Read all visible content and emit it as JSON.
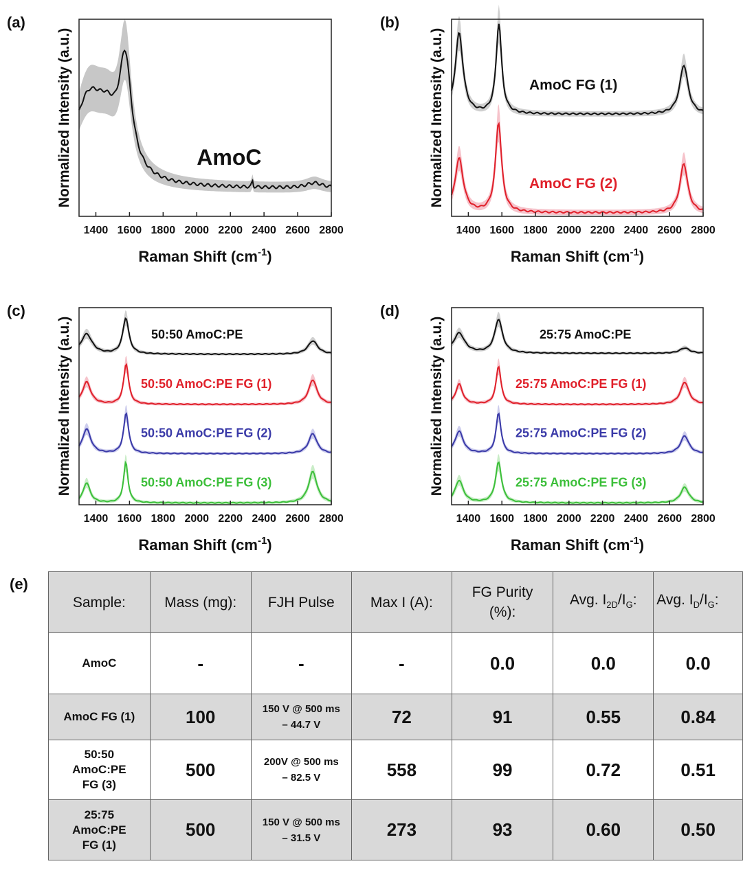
{
  "panel_e_label": "(e)",
  "chart_data": [
    {
      "panel": "(a)",
      "type": "line",
      "xlabel": "Raman Shift (cm",
      "xlabel_sup": "-1",
      "xlabel_end": ")",
      "ylabel": "Normalized Intensity (a.u.)",
      "xlim": [
        1300,
        2800
      ],
      "xticks": [
        1400,
        1600,
        1800,
        2000,
        2200,
        2400,
        2600,
        2800
      ],
      "ylim": [
        0,
        1.15
      ],
      "grid": false,
      "series": [
        {
          "name": "AmoC",
          "label": "AmoC",
          "color": "#111111",
          "band": "#bdbdbd",
          "offset": 0,
          "peaks": [
            {
              "c": 1355,
              "h": 0.48,
              "w": 120
            },
            {
              "c": 1470,
              "h": 0.22,
              "w": 80
            },
            {
              "c": 1575,
              "h": 0.62,
              "w": 45
            }
          ],
          "baseline": 0.12,
          "ripple": [
            {
              "c": 2700,
              "h": 0.03,
              "w": 60
            },
            {
              "c": 2330,
              "h": 0.05,
              "w": 3
            }
          ]
        }
      ]
    },
    {
      "panel": "(b)",
      "type": "line",
      "xlabel": "Raman Shift (cm",
      "xlabel_sup": "-1",
      "xlabel_end": ")",
      "ylabel": "Normalized Intensity (a.u.)",
      "xlim": [
        1300,
        2800
      ],
      "xticks": [
        1400,
        1600,
        1800,
        2000,
        2200,
        2400,
        2600,
        2800
      ],
      "ylim": [
        0,
        2.2
      ],
      "grid": false,
      "series": [
        {
          "name": "AmoC FG (1)",
          "label": "AmoC FG (1)",
          "color": "#111111",
          "band": "#c8c8c8",
          "offset": 1.1,
          "peaks": [
            {
              "c": 1345,
              "h": 0.9,
              "w": 28
            },
            {
              "c": 1582,
              "h": 1.0,
              "w": 20
            },
            {
              "c": 2685,
              "h": 0.55,
              "w": 30
            }
          ],
          "baseline": 0.0
        },
        {
          "name": "AmoC FG (2)",
          "label": "AmoC FG (2)",
          "color": "#e0202a",
          "band": "#f5b8c2",
          "offset": 0.0,
          "peaks": [
            {
              "c": 1345,
              "h": 0.6,
              "w": 30
            },
            {
              "c": 1580,
              "h": 1.0,
              "w": 22
            },
            {
              "c": 2685,
              "h": 0.55,
              "w": 28
            }
          ],
          "baseline": 0.0
        }
      ]
    },
    {
      "panel": "(c)",
      "type": "line",
      "xlabel": "Raman Shift (cm",
      "xlabel_sup": "-1",
      "xlabel_end": ")",
      "ylabel": "Normalized Intensity (a.u.)",
      "xlim": [
        1300,
        2800
      ],
      "xticks": [
        1400,
        1600,
        1800,
        2000,
        2200,
        2400,
        2600,
        2800
      ],
      "ylim": [
        0,
        4.4
      ],
      "grid": false,
      "series": [
        {
          "name": "50:50 AmoC:PE",
          "label": "50:50 AmoC:PE",
          "color": "#111111",
          "band": "#c8c8c8",
          "offset": 3.3,
          "peaks": [
            {
              "c": 1345,
              "h": 0.45,
              "w": 40
            },
            {
              "c": 1578,
              "h": 0.8,
              "w": 22
            },
            {
              "c": 2690,
              "h": 0.3,
              "w": 35
            }
          ],
          "baseline": 0.02
        },
        {
          "name": "50:50 AmoC:PE FG (1)",
          "label": "50:50 AmoC:PE FG (1)",
          "color": "#e0202a",
          "band": "#f5b8c2",
          "offset": 2.2,
          "peaks": [
            {
              "c": 1345,
              "h": 0.5,
              "w": 30
            },
            {
              "c": 1580,
              "h": 0.9,
              "w": 18
            },
            {
              "c": 2690,
              "h": 0.55,
              "w": 30
            }
          ],
          "baseline": 0.0
        },
        {
          "name": "50:50 AmoC:PE FG (2)",
          "label": "50:50 AmoC:PE FG (2)",
          "color": "#3a3aa8",
          "band": "#c4c4ea",
          "offset": 1.1,
          "peaks": [
            {
              "c": 1345,
              "h": 0.55,
              "w": 30
            },
            {
              "c": 1580,
              "h": 0.9,
              "w": 18
            },
            {
              "c": 2690,
              "h": 0.45,
              "w": 30
            }
          ],
          "baseline": 0.0
        },
        {
          "name": "50:50 AmoC:PE FG (3)",
          "label": "50:50 AmoC:PE FG (3)",
          "color": "#3cbf3a",
          "band": "#bfeabd",
          "offset": 0.0,
          "peaks": [
            {
              "c": 1345,
              "h": 0.45,
              "w": 25
            },
            {
              "c": 1578,
              "h": 0.9,
              "w": 16
            },
            {
              "c": 2690,
              "h": 0.7,
              "w": 30
            }
          ],
          "baseline": 0.0
        }
      ]
    },
    {
      "panel": "(d)",
      "type": "line",
      "xlabel": "Raman Shift (cm",
      "xlabel_sup": "-1",
      "xlabel_end": ")",
      "ylabel": "Normalized Intensity (a.u.)",
      "xlim": [
        1300,
        2800
      ],
      "xticks": [
        1400,
        1600,
        1800,
        2000,
        2200,
        2400,
        2600,
        2800
      ],
      "ylim": [
        0,
        4.4
      ],
      "grid": false,
      "series": [
        {
          "name": "25:75 AmoC:PE",
          "label": "25:75 AmoC:PE",
          "color": "#111111",
          "band": "#c8c8c8",
          "offset": 3.3,
          "peaks": [
            {
              "c": 1345,
              "h": 0.45,
              "w": 40
            },
            {
              "c": 1580,
              "h": 0.75,
              "w": 28
            },
            {
              "c": 2690,
              "h": 0.12,
              "w": 35
            }
          ],
          "baseline": 0.04
        },
        {
          "name": "25:75 AmoC:PE FG (1)",
          "label": "25:75 AmoC:PE FG (1)",
          "color": "#e0202a",
          "band": "#f5b8c2",
          "offset": 2.2,
          "peaks": [
            {
              "c": 1345,
              "h": 0.45,
              "w": 25
            },
            {
              "c": 1580,
              "h": 0.85,
              "w": 18
            },
            {
              "c": 2690,
              "h": 0.5,
              "w": 30
            }
          ],
          "baseline": 0.0
        },
        {
          "name": "25:75 AmoC:PE FG (2)",
          "label": "25:75 AmoC:PE FG (2)",
          "color": "#3a3aa8",
          "band": "#c4c4ea",
          "offset": 1.1,
          "peaks": [
            {
              "c": 1345,
              "h": 0.5,
              "w": 30
            },
            {
              "c": 1580,
              "h": 0.9,
              "w": 18
            },
            {
              "c": 2690,
              "h": 0.4,
              "w": 30
            }
          ],
          "baseline": 0.0
        },
        {
          "name": "25:75 AmoC:PE FG (3)",
          "label": "25:75 AmoC:PE FG (3)",
          "color": "#3cbf3a",
          "band": "#bfeabd",
          "offset": 0.0,
          "peaks": [
            {
              "c": 1345,
              "h": 0.5,
              "w": 30
            },
            {
              "c": 1580,
              "h": 0.9,
              "w": 22
            },
            {
              "c": 2690,
              "h": 0.35,
              "w": 30
            }
          ],
          "baseline": 0.0
        }
      ]
    }
  ],
  "table": {
    "headers": [
      "Sample:",
      "Mass (mg):",
      "FJH Pulse",
      "Max I (A):",
      "FG Purity (%):"
    ],
    "header_ratio": {
      "prefix": "Avg. I",
      "sub_a": "2D",
      "slash": "/I",
      "sub_b": "G",
      "suffix": ":"
    },
    "header_ratio2": {
      "prefix": "Avg. I",
      "sub_a": "D",
      "slash": "/I",
      "sub_b": "G",
      "suffix": ":"
    },
    "rows": [
      {
        "sample": "AmoC",
        "mass": "-",
        "pulse": "-",
        "max_i": "-",
        "purity": "0.0",
        "i2d_ig": "0.0",
        "id_ig": "0.0"
      },
      {
        "sample": "AmoC FG (1)",
        "mass": "100",
        "pulse": "150 V @ 500 ms – 44.7 V",
        "max_i": "72",
        "purity": "91",
        "i2d_ig": "0.55",
        "id_ig": "0.84"
      },
      {
        "sample": "50:50 AmoC:PE FG (3)",
        "mass": "500",
        "pulse": "200V @ 500 ms – 82.5 V",
        "max_i": "558",
        "purity": "99",
        "i2d_ig": "0.72",
        "id_ig": "0.51"
      },
      {
        "sample": "25:75 AmoC:PE FG (1)",
        "mass": "500",
        "pulse": "150 V @ 500 ms – 31.5 V",
        "max_i": "273",
        "purity": "93",
        "i2d_ig": "0.60",
        "id_ig": "0.50"
      }
    ]
  }
}
